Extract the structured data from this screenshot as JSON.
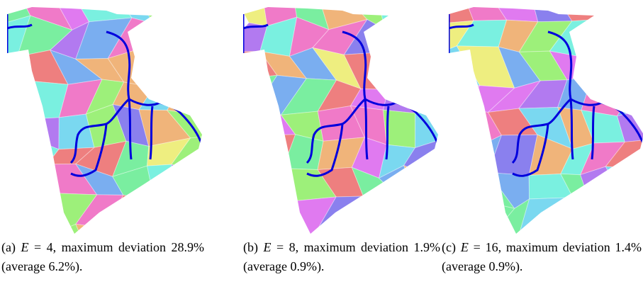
{
  "panels": [
    {
      "label": "(a)",
      "variable": "E",
      "text": "= 4, maximum deviation 28.9% (average 6.2%)."
    },
    {
      "label": "(b)",
      "variable": "E",
      "text": "= 8, maximum deviation 1.9% (average 0.9%)."
    },
    {
      "label": "(c)",
      "variable": "E",
      "text": "= 16, maximum deviation 1.4% (average 0.9%)."
    }
  ]
}
